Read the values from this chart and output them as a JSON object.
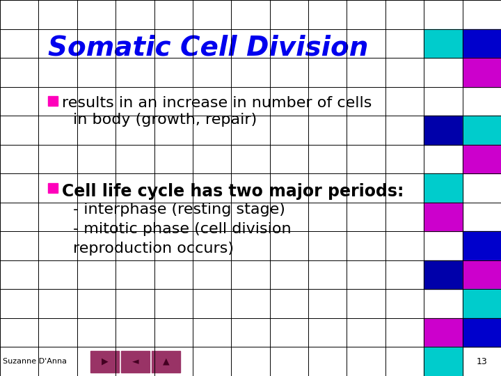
{
  "title": "Somatic Cell Division",
  "title_color": "#0000EE",
  "bg_color": "#FFFFFF",
  "grid_color": "#000000",
  "bullet_sq_color": "#FF00BB",
  "text_color": "#000000",
  "body_fontsize": 16,
  "bold_fontsize": 17,
  "title_fontsize": 28,
  "footer_text": "Suzanne D'Anna",
  "page_num": "13",
  "nav_color": "#993366",
  "ncols": 13,
  "nrows": 13,
  "right_col_colors": [
    [
      "W",
      "W"
    ],
    [
      "#00CCCC",
      "#0000CC"
    ],
    [
      "W",
      "#CC00CC"
    ],
    [
      "W",
      "W"
    ],
    [
      "#0000AA",
      "#00CCCC"
    ],
    [
      "W",
      "#CC00CC"
    ],
    [
      "#00CCCC",
      "W"
    ],
    [
      "#CC00CC",
      "W"
    ],
    [
      "W",
      "#0000CC"
    ],
    [
      "#0000AA",
      "#CC00CC"
    ],
    [
      "W",
      "#00CCCC"
    ],
    [
      "#CC00CC",
      "#0000CC"
    ],
    [
      "#00CCCC",
      "W"
    ]
  ]
}
